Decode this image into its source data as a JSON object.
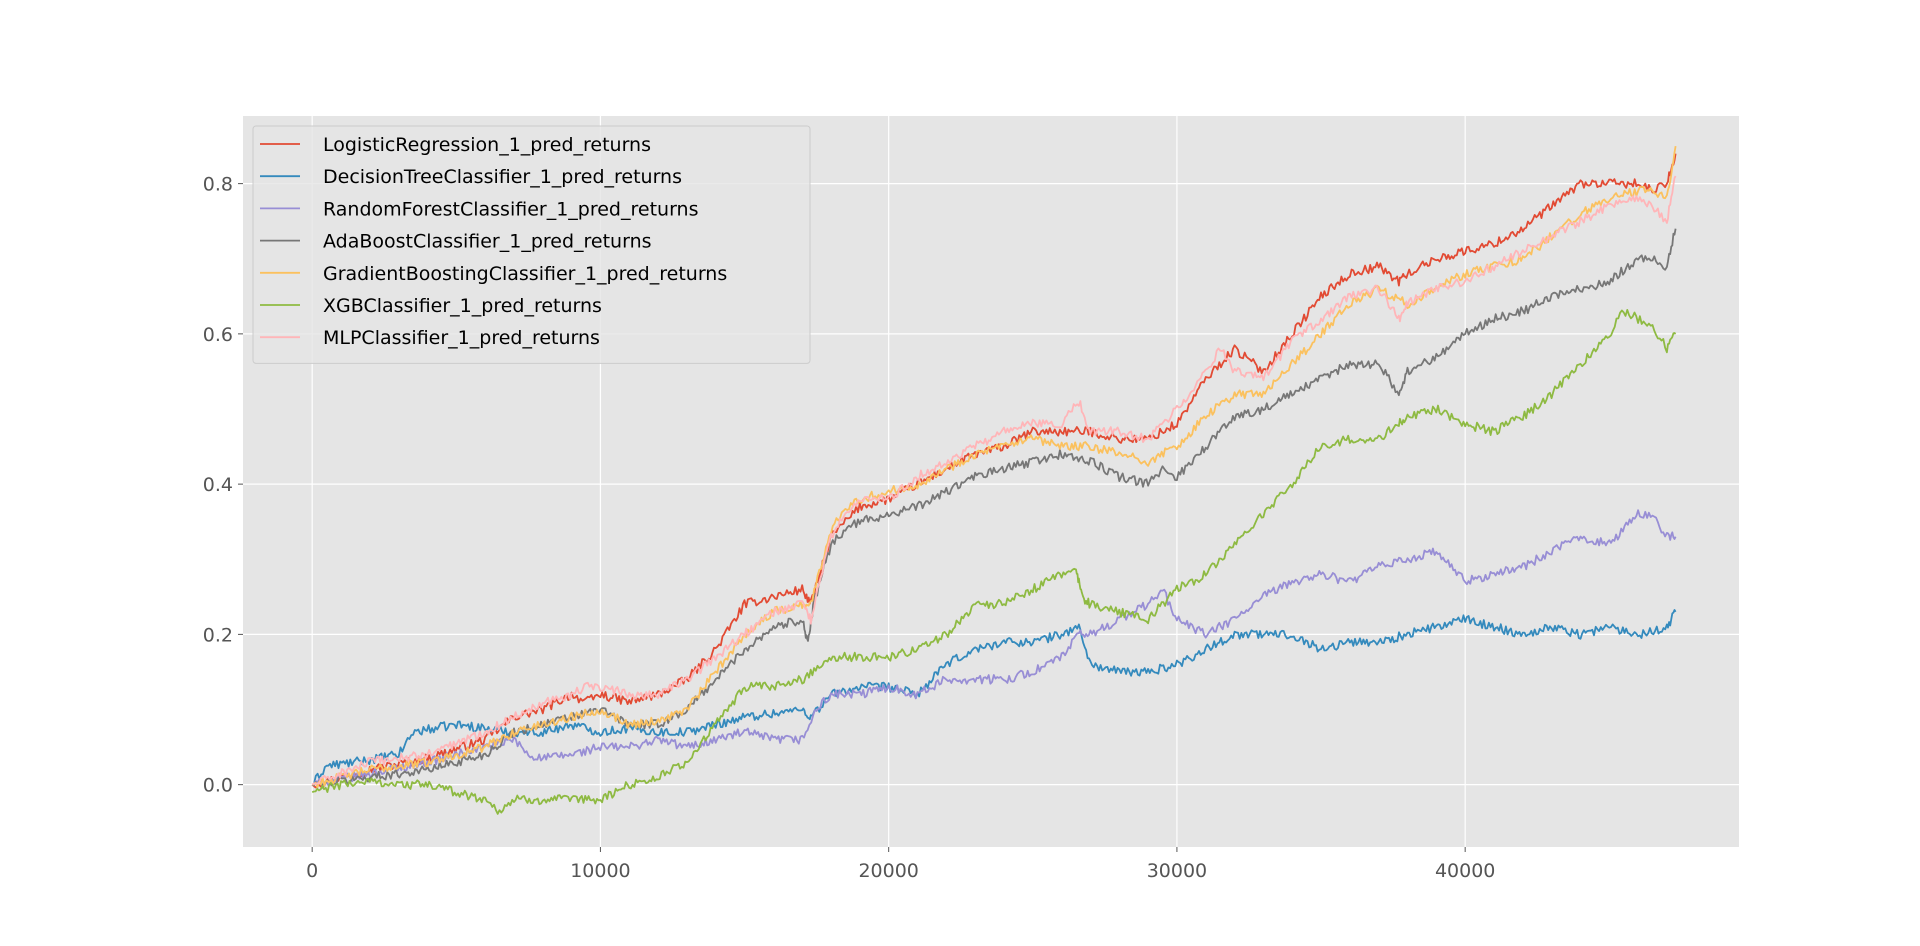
{
  "chart_data": {
    "type": "line",
    "title": "",
    "xlabel": "",
    "ylabel": "",
    "xlim": [
      -2400,
      49500
    ],
    "ylim": [
      -0.083,
      0.89
    ],
    "x_ticks": [
      0,
      10000,
      20000,
      30000,
      40000
    ],
    "x_tick_labels": [
      "0",
      "10000",
      "20000",
      "30000",
      "40000"
    ],
    "y_ticks": [
      0.0,
      0.2,
      0.4,
      0.6,
      0.8
    ],
    "y_tick_labels": [
      "0.0",
      "0.2",
      "0.4",
      "0.6",
      "0.8"
    ],
    "grid": true,
    "legend": "upper-left",
    "series": [
      {
        "name": "LogisticRegression_1_pred_returns",
        "color": "#E24A33",
        "x": [
          0,
          2000,
          4000,
          6000,
          7000,
          8000,
          9000,
          9500,
          10000,
          11000,
          12000,
          13000,
          14000,
          15000,
          16000,
          17000,
          17300,
          18000,
          18500,
          19000,
          20000,
          21000,
          22000,
          23000,
          24000,
          25000,
          26000,
          27000,
          28000,
          29000,
          30000,
          31000,
          32000,
          33000,
          34000,
          35000,
          36000,
          37000,
          37700,
          38000,
          39000,
          40000,
          41000,
          42000,
          43000,
          44000,
          45000,
          46000,
          46500,
          47000,
          47300
        ],
        "y": [
          0.0,
          0.02,
          0.035,
          0.06,
          0.09,
          0.1,
          0.12,
          0.11,
          0.12,
          0.11,
          0.12,
          0.14,
          0.18,
          0.24,
          0.25,
          0.26,
          0.24,
          0.33,
          0.35,
          0.37,
          0.38,
          0.4,
          0.42,
          0.44,
          0.45,
          0.47,
          0.47,
          0.47,
          0.46,
          0.46,
          0.48,
          0.54,
          0.58,
          0.55,
          0.6,
          0.65,
          0.68,
          0.69,
          0.67,
          0.68,
          0.7,
          0.71,
          0.72,
          0.74,
          0.77,
          0.8,
          0.8,
          0.8,
          0.79,
          0.8,
          0.84
        ]
      },
      {
        "name": "DecisionTreeClassifier_1_pred_returns",
        "color": "#348ABD",
        "x": [
          0,
          500,
          1500,
          3000,
          3500,
          5000,
          6000,
          7000,
          8000,
          9000,
          10000,
          11000,
          12000,
          13000,
          14000,
          15000,
          16000,
          17000,
          17300,
          18000,
          19000,
          20000,
          21000,
          22000,
          23000,
          24000,
          25000,
          26000,
          26600,
          27000,
          28000,
          29000,
          30000,
          31000,
          32000,
          33000,
          34000,
          35000,
          36000,
          37000,
          38000,
          39000,
          40000,
          41000,
          42000,
          43000,
          44000,
          45000,
          46000,
          47000,
          47300
        ],
        "y": [
          0.0,
          0.025,
          0.03,
          0.04,
          0.07,
          0.08,
          0.075,
          0.07,
          0.07,
          0.08,
          0.07,
          0.075,
          0.07,
          0.07,
          0.08,
          0.09,
          0.095,
          0.1,
          0.09,
          0.12,
          0.13,
          0.13,
          0.12,
          0.16,
          0.18,
          0.19,
          0.19,
          0.2,
          0.21,
          0.16,
          0.15,
          0.15,
          0.16,
          0.18,
          0.2,
          0.2,
          0.2,
          0.18,
          0.19,
          0.19,
          0.2,
          0.21,
          0.22,
          0.21,
          0.2,
          0.21,
          0.2,
          0.21,
          0.2,
          0.21,
          0.23
        ]
      },
      {
        "name": "RandomForestClassifier_1_pred_returns",
        "color": "#988ED5",
        "x": [
          0,
          2000,
          4000,
          6000,
          7000,
          7500,
          8000,
          9000,
          10000,
          11000,
          12000,
          13000,
          14000,
          15000,
          16000,
          17000,
          17500,
          18000,
          19000,
          20000,
          21000,
          22000,
          23000,
          24000,
          25000,
          26000,
          26600,
          27000,
          28000,
          29000,
          29500,
          30000,
          31000,
          32000,
          33000,
          34000,
          35000,
          36000,
          37000,
          38000,
          39000,
          40000,
          41000,
          42000,
          43000,
          44000,
          45000,
          46000,
          46500,
          47000,
          47300
        ],
        "y": [
          0.0,
          0.015,
          0.03,
          0.05,
          0.06,
          0.04,
          0.035,
          0.04,
          0.05,
          0.05,
          0.06,
          0.05,
          0.06,
          0.07,
          0.06,
          0.06,
          0.1,
          0.12,
          0.12,
          0.13,
          0.12,
          0.14,
          0.14,
          0.14,
          0.15,
          0.17,
          0.2,
          0.2,
          0.22,
          0.24,
          0.26,
          0.22,
          0.2,
          0.22,
          0.25,
          0.27,
          0.28,
          0.27,
          0.29,
          0.3,
          0.31,
          0.27,
          0.28,
          0.29,
          0.31,
          0.33,
          0.32,
          0.36,
          0.36,
          0.33,
          0.33
        ]
      },
      {
        "name": "AdaBoostClassifier_1_pred_returns",
        "color": "#777777",
        "x": [
          0,
          2000,
          4000,
          6000,
          7000,
          8000,
          9000,
          10000,
          11000,
          12000,
          13000,
          14000,
          15000,
          16000,
          17000,
          17200,
          17400,
          18000,
          18500,
          19000,
          20000,
          21000,
          22000,
          23000,
          24000,
          25000,
          26000,
          27000,
          28000,
          29000,
          29500,
          30000,
          31000,
          32000,
          33000,
          34000,
          35000,
          36000,
          37000,
          37700,
          38000,
          39000,
          40000,
          41000,
          42000,
          43000,
          44000,
          45000,
          46000,
          46500,
          47000,
          47300
        ],
        "y": [
          0.0,
          0.01,
          0.02,
          0.04,
          0.07,
          0.08,
          0.09,
          0.1,
          0.08,
          0.08,
          0.1,
          0.14,
          0.18,
          0.21,
          0.22,
          0.19,
          0.24,
          0.32,
          0.34,
          0.35,
          0.36,
          0.37,
          0.39,
          0.41,
          0.42,
          0.43,
          0.44,
          0.43,
          0.41,
          0.4,
          0.42,
          0.41,
          0.45,
          0.49,
          0.5,
          0.52,
          0.54,
          0.56,
          0.56,
          0.52,
          0.55,
          0.57,
          0.6,
          0.62,
          0.63,
          0.65,
          0.66,
          0.67,
          0.7,
          0.7,
          0.69,
          0.74
        ]
      },
      {
        "name": "GradientBoostingClassifier_1_pred_returns",
        "color": "#FBC15E",
        "x": [
          0,
          2000,
          4000,
          6000,
          7000,
          8000,
          9000,
          10000,
          11000,
          12000,
          13000,
          14000,
          15000,
          16000,
          17000,
          17300,
          18000,
          18500,
          19000,
          20000,
          21000,
          22000,
          23000,
          24000,
          25000,
          26000,
          27000,
          28000,
          29000,
          30000,
          31000,
          32000,
          33000,
          34000,
          35000,
          36000,
          37000,
          38000,
          39000,
          40000,
          41000,
          42000,
          43000,
          44000,
          45000,
          46000,
          46500,
          47000,
          47300
        ],
        "y": [
          0.0,
          0.02,
          0.03,
          0.05,
          0.07,
          0.08,
          0.09,
          0.1,
          0.08,
          0.085,
          0.1,
          0.15,
          0.2,
          0.23,
          0.24,
          0.24,
          0.34,
          0.37,
          0.38,
          0.39,
          0.4,
          0.42,
          0.44,
          0.45,
          0.46,
          0.45,
          0.45,
          0.44,
          0.43,
          0.45,
          0.49,
          0.52,
          0.52,
          0.56,
          0.6,
          0.64,
          0.66,
          0.64,
          0.66,
          0.68,
          0.69,
          0.7,
          0.73,
          0.76,
          0.78,
          0.79,
          0.79,
          0.78,
          0.85
        ]
      },
      {
        "name": "XGBClassifier_1_pred_returns",
        "color": "#8EBA42",
        "x": [
          0,
          1000,
          2000,
          3000,
          4000,
          5000,
          6000,
          6500,
          7000,
          8000,
          9000,
          10000,
          11000,
          12000,
          13000,
          14000,
          15000,
          16000,
          17000,
          18000,
          19000,
          20000,
          21000,
          22000,
          23000,
          24000,
          25000,
          26000,
          26500,
          26700,
          27000,
          28000,
          29000,
          30000,
          31000,
          32000,
          33000,
          34000,
          35000,
          36000,
          37000,
          37700,
          38000,
          39000,
          40000,
          41000,
          42000,
          43000,
          44000,
          45000,
          45500,
          46000,
          46500,
          47000,
          47300
        ],
        "y": [
          -0.01,
          0.0,
          0.005,
          0.0,
          0.0,
          -0.01,
          -0.02,
          -0.035,
          -0.02,
          -0.02,
          -0.02,
          -0.02,
          0.0,
          0.01,
          0.03,
          0.08,
          0.13,
          0.13,
          0.14,
          0.17,
          0.17,
          0.17,
          0.18,
          0.2,
          0.24,
          0.24,
          0.26,
          0.28,
          0.29,
          0.25,
          0.24,
          0.23,
          0.22,
          0.26,
          0.28,
          0.32,
          0.36,
          0.4,
          0.45,
          0.46,
          0.46,
          0.48,
          0.49,
          0.5,
          0.48,
          0.47,
          0.49,
          0.52,
          0.56,
          0.6,
          0.63,
          0.62,
          0.61,
          0.58,
          0.6
        ]
      },
      {
        "name": "MLPClassifier_1_pred_returns",
        "color": "#FFB5B8",
        "x": [
          0,
          2000,
          4000,
          6000,
          7000,
          8000,
          9000,
          9500,
          10000,
          11000,
          12000,
          13000,
          14000,
          15000,
          16000,
          17000,
          17300,
          18000,
          18500,
          19000,
          20000,
          21000,
          22000,
          23000,
          24000,
          25000,
          26000,
          26600,
          27000,
          28000,
          29000,
          30000,
          31000,
          31500,
          32000,
          33000,
          34000,
          35000,
          36000,
          37000,
          37700,
          38000,
          39000,
          40000,
          41000,
          42000,
          43000,
          44000,
          45000,
          46000,
          46500,
          47000,
          47300
        ],
        "y": [
          0.0,
          0.03,
          0.04,
          0.07,
          0.09,
          0.11,
          0.12,
          0.13,
          0.13,
          0.12,
          0.12,
          0.14,
          0.17,
          0.2,
          0.23,
          0.24,
          0.22,
          0.33,
          0.36,
          0.38,
          0.38,
          0.41,
          0.43,
          0.45,
          0.47,
          0.48,
          0.48,
          0.51,
          0.47,
          0.47,
          0.46,
          0.5,
          0.55,
          0.58,
          0.55,
          0.54,
          0.59,
          0.62,
          0.65,
          0.66,
          0.62,
          0.64,
          0.66,
          0.67,
          0.69,
          0.71,
          0.73,
          0.75,
          0.77,
          0.78,
          0.77,
          0.75,
          0.81
        ]
      }
    ]
  }
}
